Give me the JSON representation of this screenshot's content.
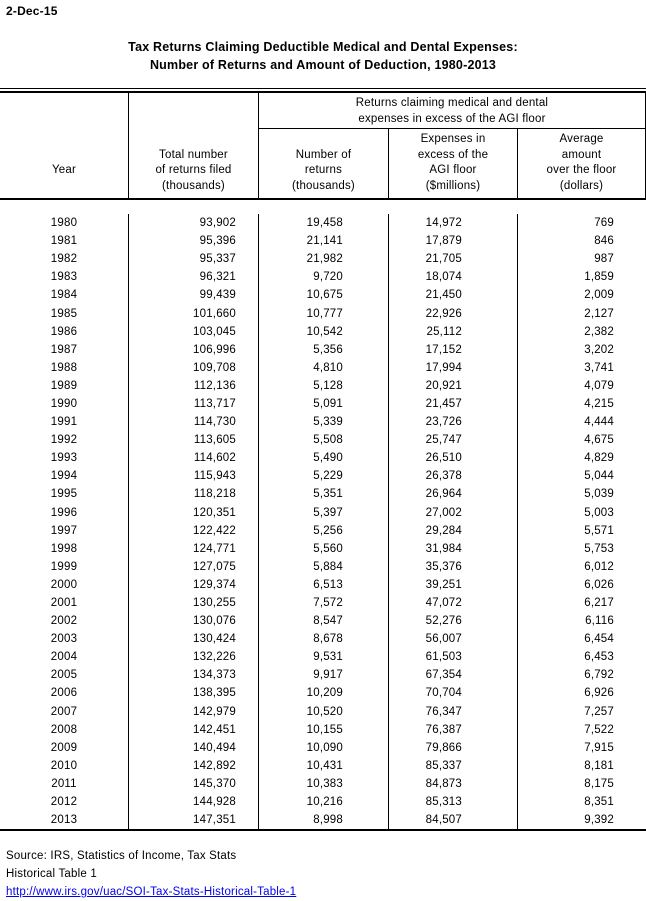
{
  "page": {
    "date_label": "2-Dec-15"
  },
  "title": {
    "line1": "Tax Returns Claiming Deductible Medical and Dental Expenses:",
    "line2": "Number of Returns and Amount of Deduction, 1980-2013"
  },
  "table": {
    "span_header": {
      "line1": "Returns claiming medical and dental",
      "line2": "expenses in excess of the AGI floor"
    },
    "col_year": [
      "Year"
    ],
    "col_total": [
      "Total number",
      "of returns filed",
      "(thousands)"
    ],
    "col_returns": [
      "Number of",
      "returns",
      "(thousands)"
    ],
    "col_expenses": [
      "Expenses in",
      "excess of the",
      "AGI floor",
      "($millions)"
    ],
    "col_average": [
      "Average",
      "amount",
      "over the floor",
      "(dollars)"
    ],
    "rows": [
      {
        "year": "1980",
        "total": "93,902",
        "returns": "19,458",
        "expenses": "14,972",
        "average": "769"
      },
      {
        "year": "1981",
        "total": "95,396",
        "returns": "21,141",
        "expenses": "17,879",
        "average": "846"
      },
      {
        "year": "1982",
        "total": "95,337",
        "returns": "21,982",
        "expenses": "21,705",
        "average": "987"
      },
      {
        "year": "1983",
        "total": "96,321",
        "returns": "9,720",
        "expenses": "18,074",
        "average": "1,859"
      },
      {
        "year": "1984",
        "total": "99,439",
        "returns": "10,675",
        "expenses": "21,450",
        "average": "2,009"
      },
      {
        "year": "1985",
        "total": "101,660",
        "returns": "10,777",
        "expenses": "22,926",
        "average": "2,127"
      },
      {
        "year": "1986",
        "total": "103,045",
        "returns": "10,542",
        "expenses": "25,112",
        "average": "2,382"
      },
      {
        "year": "1987",
        "total": "106,996",
        "returns": "5,356",
        "expenses": "17,152",
        "average": "3,202"
      },
      {
        "year": "1988",
        "total": "109,708",
        "returns": "4,810",
        "expenses": "17,994",
        "average": "3,741"
      },
      {
        "year": "1989",
        "total": "112,136",
        "returns": "5,128",
        "expenses": "20,921",
        "average": "4,079"
      },
      {
        "year": "1990",
        "total": "113,717",
        "returns": "5,091",
        "expenses": "21,457",
        "average": "4,215"
      },
      {
        "year": "1991",
        "total": "114,730",
        "returns": "5,339",
        "expenses": "23,726",
        "average": "4,444"
      },
      {
        "year": "1992",
        "total": "113,605",
        "returns": "5,508",
        "expenses": "25,747",
        "average": "4,675"
      },
      {
        "year": "1993",
        "total": "114,602",
        "returns": "5,490",
        "expenses": "26,510",
        "average": "4,829"
      },
      {
        "year": "1994",
        "total": "115,943",
        "returns": "5,229",
        "expenses": "26,378",
        "average": "5,044"
      },
      {
        "year": "1995",
        "total": "118,218",
        "returns": "5,351",
        "expenses": "26,964",
        "average": "5,039"
      },
      {
        "year": "1996",
        "total": "120,351",
        "returns": "5,397",
        "expenses": "27,002",
        "average": "5,003"
      },
      {
        "year": "1997",
        "total": "122,422",
        "returns": "5,256",
        "expenses": "29,284",
        "average": "5,571"
      },
      {
        "year": "1998",
        "total": "124,771",
        "returns": "5,560",
        "expenses": "31,984",
        "average": "5,753"
      },
      {
        "year": "1999",
        "total": "127,075",
        "returns": "5,884",
        "expenses": "35,376",
        "average": "6,012"
      },
      {
        "year": "2000",
        "total": "129,374",
        "returns": "6,513",
        "expenses": "39,251",
        "average": "6,026"
      },
      {
        "year": "2001",
        "total": "130,255",
        "returns": "7,572",
        "expenses": "47,072",
        "average": "6,217"
      },
      {
        "year": "2002",
        "total": "130,076",
        "returns": "8,547",
        "expenses": "52,276",
        "average": "6,116"
      },
      {
        "year": "2003",
        "total": "130,424",
        "returns": "8,678",
        "expenses": "56,007",
        "average": "6,454"
      },
      {
        "year": "2004",
        "total": "132,226",
        "returns": "9,531",
        "expenses": "61,503",
        "average": "6,453"
      },
      {
        "year": "2005",
        "total": "134,373",
        "returns": "9,917",
        "expenses": "67,354",
        "average": "6,792"
      },
      {
        "year": "2006",
        "total": "138,395",
        "returns": "10,209",
        "expenses": "70,704",
        "average": "6,926"
      },
      {
        "year": "2007",
        "total": "142,979",
        "returns": "10,520",
        "expenses": "76,347",
        "average": "7,257"
      },
      {
        "year": "2008",
        "total": "142,451",
        "returns": "10,155",
        "expenses": "76,387",
        "average": "7,522"
      },
      {
        "year": "2009",
        "total": "140,494",
        "returns": "10,090",
        "expenses": "79,866",
        "average": "7,915"
      },
      {
        "year": "2010",
        "total": "142,892",
        "returns": "10,431",
        "expenses": "85,337",
        "average": "8,181"
      },
      {
        "year": "2011",
        "total": "145,370",
        "returns": "10,383",
        "expenses": "84,873",
        "average": "8,175"
      },
      {
        "year": "2012",
        "total": "144,928",
        "returns": "10,216",
        "expenses": "85,313",
        "average": "8,351"
      },
      {
        "year": "2013",
        "total": "147,351",
        "returns": "8,998",
        "expenses": "84,507",
        "average": "9,392"
      }
    ]
  },
  "footer": {
    "source": "Source: IRS, Statistics of Income, Tax Stats",
    "table_ref": "Historical Table 1",
    "link": "http://www.irs.gov/uac/SOI-Tax-Stats-Historical-Table-1"
  },
  "colors": {
    "link_blue": "#0000ee",
    "text": "#000000",
    "background": "#ffffff"
  }
}
